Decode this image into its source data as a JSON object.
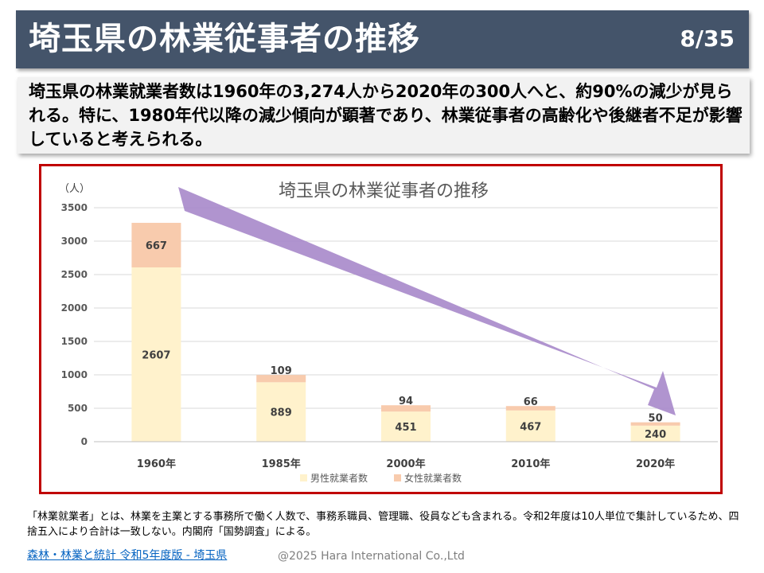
{
  "slide": {
    "title": "埼玉県の林業従事者の推移",
    "page": "8/35",
    "summary": "埼玉県の林業就業者数は1960年の3,274人から2020年の300人へと、約90%の減少が見られる。特に、1980年代以降の減少傾向が顕著であり、林業従事者の高齢化や後継者不足が影響していると考えられる。",
    "footnote": "「林業就業者」とは、林業を主業とする事務所で働く人数で、事務系職員、管理職、役員なども含まれる。令和2年度は10人単位で集計しているため、四捨五入により合計は一致しない。内閣府「国勢調査」による。",
    "source_link": "森林・林業と統計 令和5年度版 - 埼玉県",
    "copyright": "@2025 Hara International Co.,Ltd"
  },
  "colors": {
    "male": "#FFF2CC",
    "female": "#F8CBAD",
    "arrow": "#A98BCB",
    "frame": "#C00000",
    "title_bar": "#44546A"
  },
  "chart_data": {
    "type": "bar",
    "stacked": true,
    "title": "埼玉県の林業従事者の推移",
    "ylabel": "（人）",
    "xlabel": "",
    "categories": [
      "1960年",
      "1985年",
      "2000年",
      "2010年",
      "2020年"
    ],
    "series": [
      {
        "name": "男性就業者数",
        "values": [
          2607,
          889,
          451,
          467,
          240
        ]
      },
      {
        "name": "女性就業者数",
        "values": [
          667,
          109,
          94,
          66,
          50
        ]
      }
    ],
    "ylim": [
      0,
      3500
    ],
    "yticks": [
      0,
      500,
      1000,
      1500,
      2000,
      2500,
      3000,
      3500
    ],
    "grid": true,
    "legend": "bottom",
    "annotation": "downward-trend-arrow"
  }
}
